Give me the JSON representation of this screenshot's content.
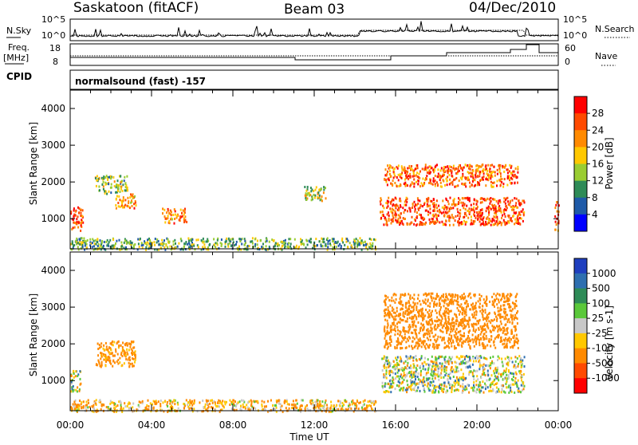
{
  "header": {
    "station": "Saskatoon (fitACF)",
    "beam": "Beam 03",
    "date": "04/Dec/2010"
  },
  "strip": {
    "nsky_label": "N.Sky",
    "nsky_ticks": [
      "10^5",
      "10^0"
    ],
    "nsearch_label": "N.Search",
    "nsearch_ticks": [
      "10^5",
      "10^0"
    ],
    "freq_label_top": "Freq.",
    "freq_label_bottom": "[MHz]",
    "freq_ticks": [
      "18",
      "8"
    ],
    "nave_label": "Nave",
    "nave_ticks": [
      "60",
      "0"
    ],
    "cpid_label": "CPID",
    "cpid_value": "normalsound (fast) -157"
  },
  "axes": {
    "ylabel": "Slant Range [km]",
    "yticks": [
      "4000",
      "3000",
      "2000",
      "1000"
    ],
    "xlabel": "Time UT",
    "xticks": [
      "00:00",
      "04:00",
      "08:00",
      "12:00",
      "16:00",
      "20:00",
      "00:00"
    ]
  },
  "power_colorbar": {
    "label": "Power [dB]",
    "ticks": [
      "28",
      "24",
      "20",
      "16",
      "12",
      "8",
      "4"
    ],
    "colors": [
      "#ff0000",
      "#ff4a00",
      "#ff8a00",
      "#ffc800",
      "#9acd32",
      "#2e8b57",
      "#1e5aa8",
      "#0000ff"
    ]
  },
  "velocity_colorbar": {
    "label": "Velocity [m s-1]",
    "ticks": [
      "1000",
      "500",
      "100",
      "25",
      "-25",
      "-100",
      "-500",
      "-1000"
    ],
    "colors": [
      "#1f3fbf",
      "#2e6fb0",
      "#2e8b57",
      "#5ac83a",
      "#c8c8c8",
      "#ffc800",
      "#ff8a00",
      "#ff4a00",
      "#ff0000"
    ]
  },
  "chart_data": [
    {
      "type": "heatmap",
      "name_panel": "power",
      "x_range_hours": [
        0,
        24
      ],
      "y_range_km": [
        180,
        4500
      ],
      "regions_note_x_hours_y_km": [
        {
          "x": [
            0.0,
            0.6
          ],
          "y": [
            700,
            1400
          ],
          "value_db": 26
        },
        {
          "x": [
            1.2,
            2.8
          ],
          "y": [
            1700,
            2200
          ],
          "value_db": 14
        },
        {
          "x": [
            2.2,
            3.2
          ],
          "y": [
            1300,
            1700
          ],
          "value_db": 22
        },
        {
          "x": [
            4.5,
            5.7
          ],
          "y": [
            900,
            1300
          ],
          "value_db": 22
        },
        {
          "x": [
            11.5,
            12.6
          ],
          "y": [
            1500,
            1900
          ],
          "value_db": 16
        },
        {
          "x": [
            15.2,
            22.3
          ],
          "y": [
            850,
            1600
          ],
          "value_db": 26
        },
        {
          "x": [
            15.4,
            22.0
          ],
          "y": [
            1900,
            2500
          ],
          "value_db": 24
        },
        {
          "x": [
            0.0,
            15.0
          ],
          "y": [
            180,
            500
          ],
          "value_db": 12
        },
        {
          "x": [
            23.8,
            24.0
          ],
          "y": [
            700,
            1500
          ],
          "value_db": 26
        }
      ]
    },
    {
      "type": "heatmap",
      "name_panel": "velocity",
      "x_range_hours": [
        0,
        24
      ],
      "y_range_km": [
        180,
        4500
      ],
      "regions_note_x_hours_y_km": [
        {
          "x": [
            0.0,
            0.5
          ],
          "y": [
            700,
            1300
          ],
          "value_ms": 0
        },
        {
          "x": [
            1.2,
            3.2
          ],
          "y": [
            1400,
            2100
          ],
          "value_ms": -200
        },
        {
          "x": [
            15.3,
            22.3
          ],
          "y": [
            700,
            1700
          ],
          "value_ms": 0
        },
        {
          "x": [
            15.4,
            22.0
          ],
          "y": [
            1900,
            3400
          ],
          "value_ms": -300
        },
        {
          "x": [
            0.0,
            15.0
          ],
          "y": [
            180,
            500
          ],
          "value_ms": -100
        }
      ]
    }
  ]
}
